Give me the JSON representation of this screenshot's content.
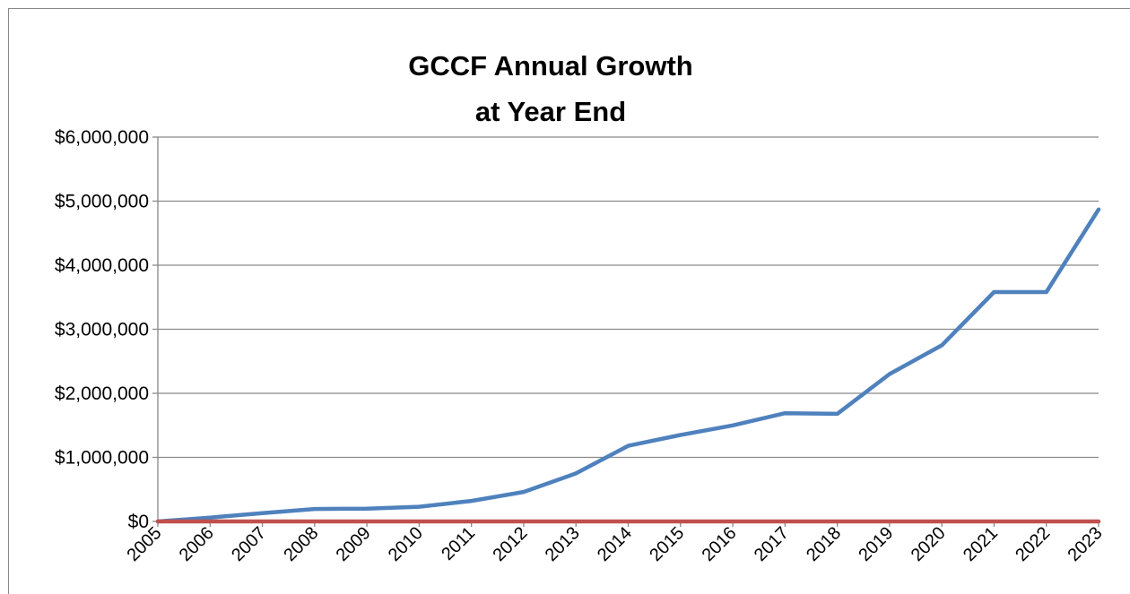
{
  "chart_data": {
    "type": "line",
    "title_lines": [
      "GCCF Annual Growth",
      "at Year End"
    ],
    "x": [
      "2005",
      "2006",
      "2007",
      "2008",
      "2009",
      "2010",
      "2011",
      "2012",
      "2013",
      "2014",
      "2015",
      "2016",
      "2017",
      "2018",
      "2019",
      "2020",
      "2021",
      "2022",
      "2023"
    ],
    "y_tick_labels": [
      "$0",
      "$1,000,000",
      "$2,000,000",
      "$3,000,000",
      "$4,000,000",
      "$5,000,000",
      "$6,000,000"
    ],
    "ylim": [
      0,
      6000000
    ],
    "y_tick_step": 1000000,
    "grid": true,
    "legend": "none",
    "series": [
      {
        "color": "#4f81bd",
        "values": [
          0,
          60000,
          130000,
          195000,
          200000,
          230000,
          320000,
          460000,
          750000,
          1180000,
          1350000,
          1500000,
          1690000,
          1680000,
          2300000,
          2750000,
          3580000,
          3580000,
          4870000
        ]
      },
      {
        "color": "#c0504d",
        "values": [
          0,
          0,
          0,
          0,
          0,
          0,
          0,
          0,
          0,
          0,
          0,
          0,
          0,
          0,
          0,
          0,
          0,
          0,
          0
        ]
      }
    ],
    "colors": {
      "gridline": "#898989",
      "axis": "#898989"
    }
  }
}
